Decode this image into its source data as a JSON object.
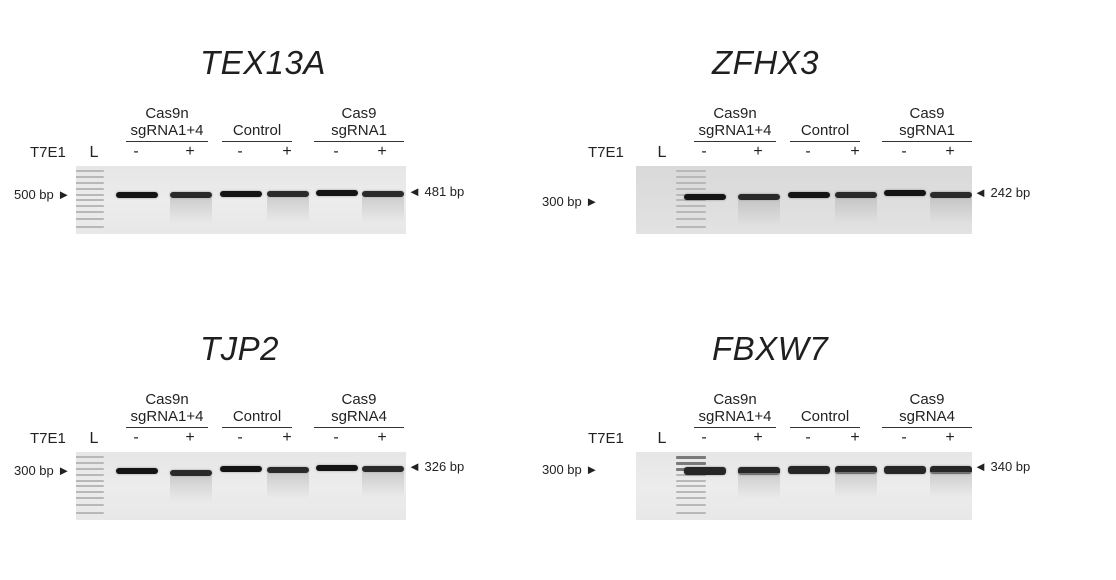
{
  "labels": {
    "t7e1": "T7E1",
    "ladder": "L",
    "minus": "-",
    "plus": "+",
    "right_arrow": "◄",
    "left_arrow": "►"
  },
  "panels": [
    {
      "gene": "TEX13A",
      "groups": [
        {
          "line1": "Cas9n",
          "line2": "sgRNA1+4"
        },
        {
          "line1": "",
          "line2": "Control"
        },
        {
          "line1": "Cas9",
          "line2": "sgRNA1"
        }
      ],
      "left_marker": "500 bp",
      "right_marker": "481 bp"
    },
    {
      "gene": "ZFHX3",
      "groups": [
        {
          "line1": "Cas9n",
          "line2": "sgRNA1+4"
        },
        {
          "line1": "",
          "line2": "Control"
        },
        {
          "line1": "Cas9",
          "line2": "sgRNA1"
        }
      ],
      "left_marker": "300 bp",
      "right_marker": "242 bp"
    },
    {
      "gene": "TJP2",
      "groups": [
        {
          "line1": "Cas9n",
          "line2": "sgRNA1+4"
        },
        {
          "line1": "",
          "line2": "Control"
        },
        {
          "line1": "Cas9",
          "line2": "sgRNA4"
        }
      ],
      "left_marker": "300 bp",
      "right_marker": "326 bp"
    },
    {
      "gene": "FBXW7",
      "groups": [
        {
          "line1": "Cas9n",
          "line2": "sgRNA1+4"
        },
        {
          "line1": "",
          "line2": "Control"
        },
        {
          "line1": "Cas9",
          "line2": "sgRNA4"
        }
      ],
      "left_marker": "300 bp",
      "right_marker": "340 bp"
    }
  ]
}
